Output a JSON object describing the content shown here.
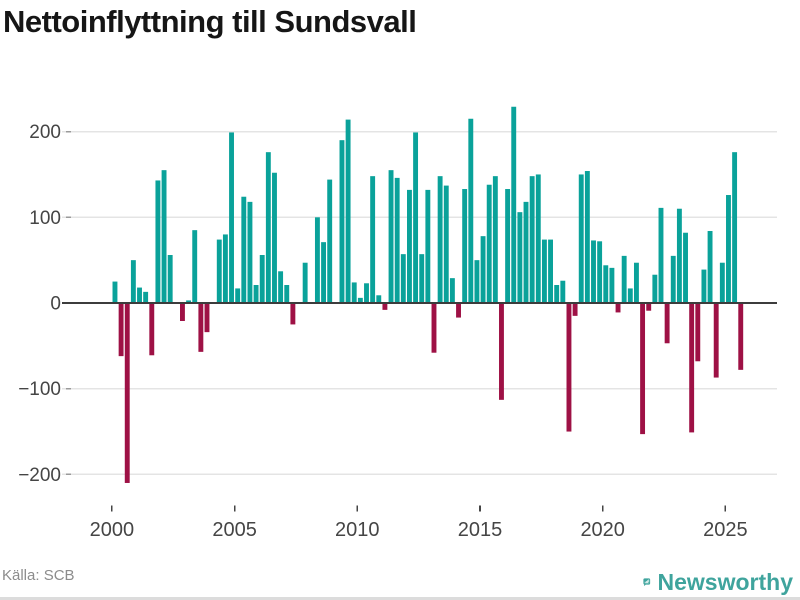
{
  "title": "Nettoinflyttning till Sundsvall",
  "source": "Källa: SCB",
  "branding": {
    "name": "Newsworthy",
    "icon": "newsworthy-speech-bubble-bar-chart-icon",
    "color": "#3fa49d"
  },
  "colors": {
    "positive_bar": "#0aa29a",
    "negative_bar": "#9e1145",
    "axis_line": "#3c3c3c",
    "gridline": "#e4e4e4",
    "tick_mark": "#9a9a9a",
    "tick_label": "#454545",
    "title_text": "#161616",
    "source_text": "#8c8c8c",
    "bottom_border": "#dcdcdc",
    "background": "#ffffff"
  },
  "chart_data": {
    "type": "bar",
    "title": "Nettoinflyttning till Sundsvall",
    "xlabel": "",
    "ylabel": "",
    "x_ticks": [
      2000,
      2005,
      2010,
      2015,
      2020,
      2025
    ],
    "y_ticks": [
      200,
      100,
      0,
      -100,
      -200
    ],
    "ylim": [
      -240,
      270
    ],
    "grid": true,
    "legend": false,
    "series_name": "Nettoinflyttning per kvartal",
    "points": [
      [
        2000,
        1,
        25
      ],
      [
        2000,
        2,
        -62
      ],
      [
        2000,
        3,
        -210
      ],
      [
        2000,
        4,
        50
      ],
      [
        2001,
        1,
        18
      ],
      [
        2001,
        2,
        13
      ],
      [
        2001,
        3,
        -61
      ],
      [
        2001,
        4,
        143
      ],
      [
        2002,
        1,
        155
      ],
      [
        2002,
        2,
        56
      ],
      [
        2002,
        3,
        0
      ],
      [
        2002,
        4,
        -21
      ],
      [
        2003,
        1,
        3
      ],
      [
        2003,
        2,
        85
      ],
      [
        2003,
        3,
        -57
      ],
      [
        2003,
        4,
        -34
      ],
      [
        2004,
        1,
        0
      ],
      [
        2004,
        2,
        74
      ],
      [
        2004,
        3,
        80
      ],
      [
        2004,
        4,
        199
      ],
      [
        2005,
        1,
        17
      ],
      [
        2005,
        2,
        124
      ],
      [
        2005,
        3,
        118
      ],
      [
        2005,
        4,
        21
      ],
      [
        2006,
        1,
        56
      ],
      [
        2006,
        2,
        176
      ],
      [
        2006,
        3,
        152
      ],
      [
        2006,
        4,
        37
      ],
      [
        2007,
        1,
        21
      ],
      [
        2007,
        2,
        -25
      ],
      [
        2007,
        3,
        0
      ],
      [
        2007,
        4,
        47
      ],
      [
        2008,
        1,
        0
      ],
      [
        2008,
        2,
        100
      ],
      [
        2008,
        3,
        71
      ],
      [
        2008,
        4,
        144
      ],
      [
        2009,
        1,
        0
      ],
      [
        2009,
        2,
        190
      ],
      [
        2009,
        3,
        214
      ],
      [
        2009,
        4,
        24
      ],
      [
        2010,
        1,
        6
      ],
      [
        2010,
        2,
        23
      ],
      [
        2010,
        3,
        148
      ],
      [
        2010,
        4,
        9
      ],
      [
        2011,
        1,
        -8
      ],
      [
        2011,
        2,
        155
      ],
      [
        2011,
        3,
        146
      ],
      [
        2011,
        4,
        57
      ],
      [
        2012,
        1,
        132
      ],
      [
        2012,
        2,
        199
      ],
      [
        2012,
        3,
        57
      ],
      [
        2012,
        4,
        132
      ],
      [
        2013,
        1,
        -58
      ],
      [
        2013,
        2,
        148
      ],
      [
        2013,
        3,
        137
      ],
      [
        2013,
        4,
        29
      ],
      [
        2014,
        1,
        -17
      ],
      [
        2014,
        2,
        133
      ],
      [
        2014,
        3,
        215
      ],
      [
        2014,
        4,
        50
      ],
      [
        2015,
        1,
        78
      ],
      [
        2015,
        2,
        138
      ],
      [
        2015,
        3,
        148
      ],
      [
        2015,
        4,
        -113
      ],
      [
        2016,
        1,
        133
      ],
      [
        2016,
        2,
        229
      ],
      [
        2016,
        3,
        106
      ],
      [
        2016,
        4,
        118
      ],
      [
        2017,
        1,
        148
      ],
      [
        2017,
        2,
        150
      ],
      [
        2017,
        3,
        74
      ],
      [
        2017,
        4,
        74
      ],
      [
        2018,
        1,
        21
      ],
      [
        2018,
        2,
        26
      ],
      [
        2018,
        3,
        -150
      ],
      [
        2018,
        4,
        -15
      ],
      [
        2019,
        1,
        150
      ],
      [
        2019,
        2,
        154
      ],
      [
        2019,
        3,
        73
      ],
      [
        2019,
        4,
        72
      ],
      [
        2020,
        1,
        44
      ],
      [
        2020,
        2,
        41
      ],
      [
        2020,
        3,
        -11
      ],
      [
        2020,
        4,
        55
      ],
      [
        2021,
        1,
        17
      ],
      [
        2021,
        2,
        47
      ],
      [
        2021,
        3,
        -153
      ],
      [
        2021,
        4,
        -9
      ],
      [
        2022,
        1,
        33
      ],
      [
        2022,
        2,
        111
      ],
      [
        2022,
        3,
        -47
      ],
      [
        2022,
        4,
        55
      ],
      [
        2023,
        1,
        110
      ],
      [
        2023,
        2,
        82
      ],
      [
        2023,
        3,
        -151
      ],
      [
        2023,
        4,
        -68
      ],
      [
        2024,
        1,
        39
      ],
      [
        2024,
        2,
        84
      ],
      [
        2024,
        3,
        -87
      ],
      [
        2024,
        4,
        47
      ],
      [
        2025,
        1,
        126
      ],
      [
        2025,
        2,
        176
      ],
      [
        2025,
        3,
        -78
      ]
    ]
  }
}
